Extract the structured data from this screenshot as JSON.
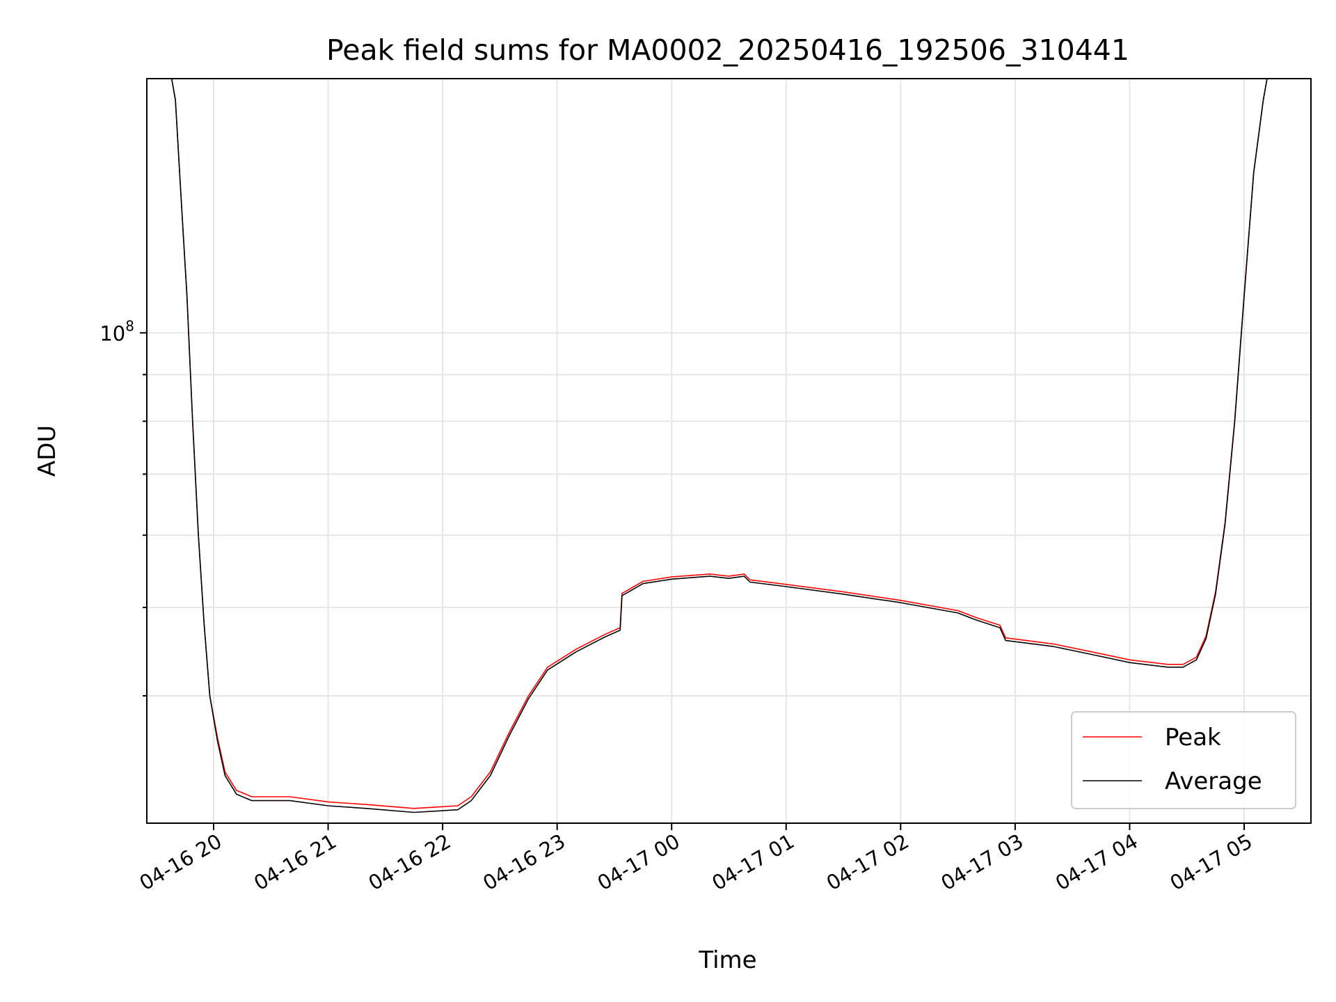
{
  "chart_data": {
    "type": "line",
    "title": "Peak field sums for MA0002_20250416_192506_310441",
    "xlabel": "Time",
    "ylabel": "ADU",
    "yscale": "log",
    "ylim": [
      29000000,
      190000000
    ],
    "xlim": [
      "2025-04-16 19:25",
      "2025-04-17 05:35"
    ],
    "grid": true,
    "legend_position": "lower-right",
    "x_ticks": [
      {
        "time": "2025-04-16 20:00",
        "label": "04-16 20"
      },
      {
        "time": "2025-04-16 21:00",
        "label": "04-16 21"
      },
      {
        "time": "2025-04-16 22:00",
        "label": "04-16 22"
      },
      {
        "time": "2025-04-16 23:00",
        "label": "04-16 23"
      },
      {
        "time": "2025-04-17 00:00",
        "label": "04-17 00"
      },
      {
        "time": "2025-04-17 01:00",
        "label": "04-17 01"
      },
      {
        "time": "2025-04-17 02:00",
        "label": "04-17 02"
      },
      {
        "time": "2025-04-17 03:00",
        "label": "04-17 03"
      },
      {
        "time": "2025-04-17 04:00",
        "label": "04-17 04"
      },
      {
        "time": "2025-04-17 05:00",
        "label": "04-17 05"
      }
    ],
    "y_major_ticks": [
      {
        "value": 100000000,
        "label_base": "10",
        "label_exp": "8"
      }
    ],
    "y_minor_ticks": [
      40000000,
      50000000,
      60000000,
      70000000,
      80000000,
      90000000,
      200000000
    ],
    "series": [
      {
        "name": "Peak",
        "color": "#ff0000",
        "points": [
          [
            "2025-04-16 19:25",
            190000000
          ],
          [
            "2025-04-16 19:38",
            190000000
          ],
          [
            "2025-04-16 19:40",
            180000000
          ],
          [
            "2025-04-16 19:43",
            140000000
          ],
          [
            "2025-04-16 19:46",
            110000000
          ],
          [
            "2025-04-16 19:49",
            80000000
          ],
          [
            "2025-04-16 19:52",
            60000000
          ],
          [
            "2025-04-16 19:55",
            48000000
          ],
          [
            "2025-04-16 19:58",
            40000000
          ],
          [
            "2025-04-16 20:02",
            36000000
          ],
          [
            "2025-04-16 20:06",
            33000000
          ],
          [
            "2025-04-16 20:12",
            31500000
          ],
          [
            "2025-04-16 20:20",
            31000000
          ],
          [
            "2025-04-16 20:40",
            31000000
          ],
          [
            "2025-04-16 21:00",
            30600000
          ],
          [
            "2025-04-16 21:20",
            30400000
          ],
          [
            "2025-04-16 21:45",
            30100000
          ],
          [
            "2025-04-16 22:08",
            30300000
          ],
          [
            "2025-04-16 22:15",
            31000000
          ],
          [
            "2025-04-16 22:25",
            33000000
          ],
          [
            "2025-04-16 22:35",
            36500000
          ],
          [
            "2025-04-16 22:45",
            40000000
          ],
          [
            "2025-04-16 22:55",
            43000000
          ],
          [
            "2025-04-16 23:10",
            45000000
          ],
          [
            "2025-04-16 23:25",
            46700000
          ],
          [
            "2025-04-16 23:33",
            47500000
          ],
          [
            "2025-04-16 23:34",
            51800000
          ],
          [
            "2025-04-16 23:45",
            53400000
          ],
          [
            "2025-04-17 00:00",
            54000000
          ],
          [
            "2025-04-17 00:20",
            54400000
          ],
          [
            "2025-04-17 00:30",
            54100000
          ],
          [
            "2025-04-17 00:38",
            54400000
          ],
          [
            "2025-04-17 00:41",
            53600000
          ],
          [
            "2025-04-17 01:00",
            53000000
          ],
          [
            "2025-04-17 01:30",
            52000000
          ],
          [
            "2025-04-17 02:00",
            50900000
          ],
          [
            "2025-04-17 02:30",
            49600000
          ],
          [
            "2025-04-17 02:40",
            48700000
          ],
          [
            "2025-04-17 02:52",
            47800000
          ],
          [
            "2025-04-17 02:55",
            46300000
          ],
          [
            "2025-04-17 03:20",
            45600000
          ],
          [
            "2025-04-17 03:40",
            44700000
          ],
          [
            "2025-04-17 04:00",
            43800000
          ],
          [
            "2025-04-17 04:20",
            43300000
          ],
          [
            "2025-04-17 04:28",
            43300000
          ],
          [
            "2025-04-17 04:35",
            44100000
          ],
          [
            "2025-04-17 04:40",
            46500000
          ],
          [
            "2025-04-17 04:45",
            52000000
          ],
          [
            "2025-04-17 04:50",
            62000000
          ],
          [
            "2025-04-17 04:55",
            80000000
          ],
          [
            "2025-04-17 05:00",
            110000000
          ],
          [
            "2025-04-17 05:05",
            150000000
          ],
          [
            "2025-04-17 05:10",
            180000000
          ],
          [
            "2025-04-17 05:12",
            190000000
          ],
          [
            "2025-04-17 05:35",
            190000000
          ]
        ]
      },
      {
        "name": "Average",
        "color": "#000000",
        "points": [
          [
            "2025-04-16 19:25",
            190000000
          ],
          [
            "2025-04-16 19:38",
            190000000
          ],
          [
            "2025-04-16 19:40",
            180000000
          ],
          [
            "2025-04-16 19:43",
            140000000
          ],
          [
            "2025-04-16 19:46",
            110000000
          ],
          [
            "2025-04-16 19:49",
            80000000
          ],
          [
            "2025-04-16 19:52",
            60000000
          ],
          [
            "2025-04-16 19:55",
            48000000
          ],
          [
            "2025-04-16 19:58",
            40000000
          ],
          [
            "2025-04-16 20:02",
            35700000
          ],
          [
            "2025-04-16 20:06",
            32700000
          ],
          [
            "2025-04-16 20:12",
            31200000
          ],
          [
            "2025-04-16 20:20",
            30700000
          ],
          [
            "2025-04-16 20:40",
            30700000
          ],
          [
            "2025-04-16 21:00",
            30300000
          ],
          [
            "2025-04-16 21:20",
            30100000
          ],
          [
            "2025-04-16 21:45",
            29800000
          ],
          [
            "2025-04-16 22:08",
            30000000
          ],
          [
            "2025-04-16 22:15",
            30700000
          ],
          [
            "2025-04-16 22:25",
            32700000
          ],
          [
            "2025-04-16 22:35",
            36200000
          ],
          [
            "2025-04-16 22:45",
            39700000
          ],
          [
            "2025-04-16 22:55",
            42700000
          ],
          [
            "2025-04-16 23:10",
            44700000
          ],
          [
            "2025-04-16 23:25",
            46400000
          ],
          [
            "2025-04-16 23:33",
            47200000
          ],
          [
            "2025-04-16 23:34",
            51500000
          ],
          [
            "2025-04-16 23:45",
            53100000
          ],
          [
            "2025-04-17 00:00",
            53700000
          ],
          [
            "2025-04-17 00:20",
            54100000
          ],
          [
            "2025-04-17 00:30",
            53800000
          ],
          [
            "2025-04-17 00:38",
            54100000
          ],
          [
            "2025-04-17 00:41",
            53300000
          ],
          [
            "2025-04-17 01:00",
            52700000
          ],
          [
            "2025-04-17 01:30",
            51700000
          ],
          [
            "2025-04-17 02:00",
            50600000
          ],
          [
            "2025-04-17 02:30",
            49300000
          ],
          [
            "2025-04-17 02:40",
            48400000
          ],
          [
            "2025-04-17 02:52",
            47500000
          ],
          [
            "2025-04-17 02:55",
            46000000
          ],
          [
            "2025-04-17 03:20",
            45300000
          ],
          [
            "2025-04-17 03:40",
            44400000
          ],
          [
            "2025-04-17 04:00",
            43500000
          ],
          [
            "2025-04-17 04:20",
            43000000
          ],
          [
            "2025-04-17 04:28",
            43000000
          ],
          [
            "2025-04-17 04:35",
            43800000
          ],
          [
            "2025-04-17 04:40",
            46200000
          ],
          [
            "2025-04-17 04:45",
            51700000
          ],
          [
            "2025-04-17 04:50",
            61700000
          ],
          [
            "2025-04-17 04:55",
            79700000
          ],
          [
            "2025-04-17 05:00",
            109700000
          ],
          [
            "2025-04-17 05:05",
            149700000
          ],
          [
            "2025-04-17 05:10",
            179700000
          ],
          [
            "2025-04-17 05:12",
            190000000
          ],
          [
            "2025-04-17 05:35",
            190000000
          ]
        ]
      }
    ]
  }
}
